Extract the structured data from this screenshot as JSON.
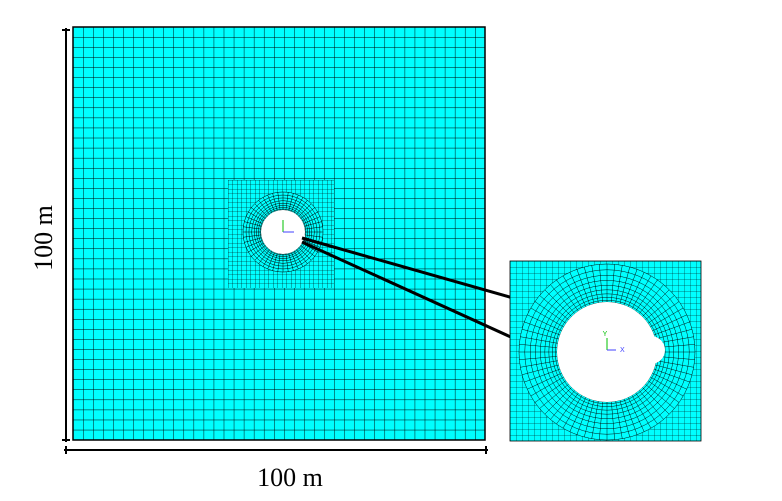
{
  "dimensions": {
    "vertical": "100 m",
    "horizontal": "100 m"
  },
  "inset": {
    "axis_y": "Y",
    "axis_x": "X"
  }
}
